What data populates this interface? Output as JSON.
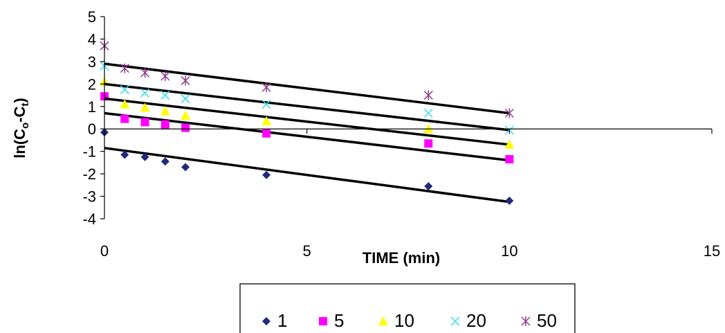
{
  "chart_data": {
    "type": "scatter",
    "xlabel": "TIME (min)",
    "ylabel": {
      "base": "ln(C",
      "sub1": "o",
      "mid": "-C",
      "sub2": "t",
      "end": ")"
    },
    "xlim": [
      0,
      15
    ],
    "ylim": [
      -4,
      5
    ],
    "xticks": [
      "0",
      "5",
      "10",
      "15"
    ],
    "yticks": [
      "-4",
      "-3",
      "-2",
      "-1",
      "0",
      "1",
      "2",
      "3",
      "4",
      "5"
    ],
    "grid": false,
    "legend_position": "bottom",
    "series": [
      {
        "name": "1",
        "color": "#1f2a7a",
        "marker": "diamond",
        "x": [
          0,
          0.5,
          1,
          1.5,
          2,
          4,
          8,
          10
        ],
        "y": [
          -0.15,
          -1.15,
          -1.25,
          -1.45,
          -1.7,
          -2.05,
          -2.55,
          -3.2
        ],
        "fit": [
          -0.85,
          -3.25
        ]
      },
      {
        "name": "5",
        "color": "#ff00ff",
        "marker": "square",
        "x": [
          0,
          0.5,
          1,
          1.5,
          2,
          4,
          8,
          10
        ],
        "y": [
          1.45,
          0.45,
          0.3,
          0.2,
          0.05,
          -0.2,
          -0.65,
          -1.35
        ],
        "fit": [
          0.7,
          -1.4
        ]
      },
      {
        "name": "10",
        "color": "#ffff00",
        "marker": "triangle",
        "x": [
          0,
          0.5,
          1,
          1.5,
          2,
          4,
          8,
          10
        ],
        "y": [
          2.1,
          1.1,
          0.95,
          0.8,
          0.6,
          0.35,
          0.0,
          -0.7
        ],
        "fit": [
          1.35,
          -0.7
        ]
      },
      {
        "name": "20",
        "color": "#33ddee",
        "marker": "x",
        "x": [
          0,
          0.5,
          1,
          1.5,
          2,
          4,
          8,
          10
        ],
        "y": [
          2.8,
          1.75,
          1.6,
          1.5,
          1.35,
          1.1,
          0.7,
          -0.05
        ],
        "fit": [
          2.0,
          -0.05
        ]
      },
      {
        "name": "50",
        "color": "#8e3a8e",
        "marker": "star",
        "x": [
          0,
          0.5,
          1,
          1.5,
          2,
          4,
          8,
          10
        ],
        "y": [
          3.7,
          2.7,
          2.5,
          2.35,
          2.15,
          1.85,
          1.5,
          0.7
        ],
        "fit": [
          2.9,
          0.7
        ]
      }
    ]
  }
}
